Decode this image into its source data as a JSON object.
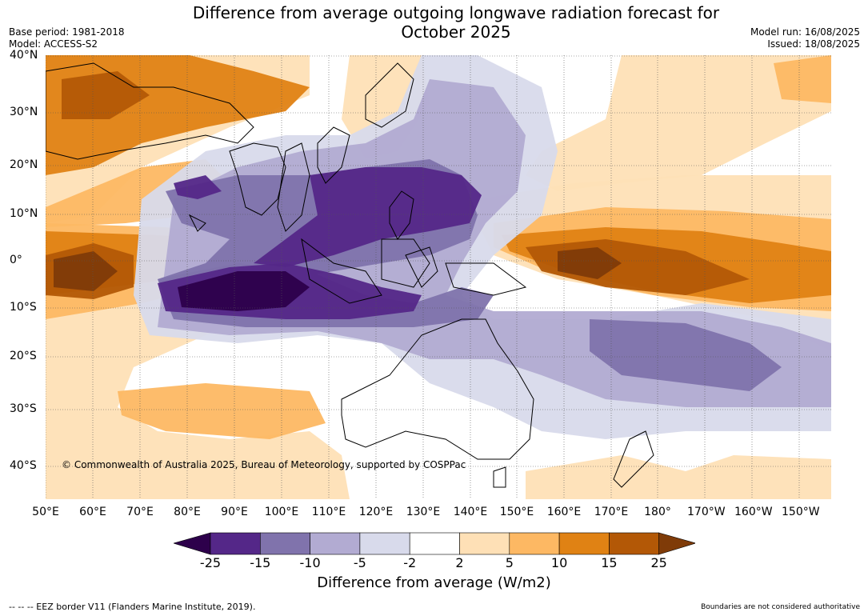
{
  "title": {
    "line1": "Difference from average outgoing longwave radiation forecast for",
    "line2": "October 2025"
  },
  "meta_left": {
    "base_period": "Base period: 1981-2018",
    "model": "Model: ACCESS-S2"
  },
  "meta_right": {
    "model_run": "Model run: 16/08/2025",
    "issued": "Issued: 18/08/2025"
  },
  "map": {
    "lat_labels": [
      "40°N",
      "30°N",
      "20°N",
      "10°N",
      "0°",
      "10°S",
      "20°S",
      "30°S",
      "40°S"
    ],
    "lon_labels": [
      "50°E",
      "60°E",
      "70°E",
      "80°E",
      "90°E",
      "100°E",
      "110°E",
      "120°E",
      "130°E",
      "140°E",
      "150°E",
      "160°E",
      "170°E",
      "180°",
      "170°W",
      "160°W",
      "150°W"
    ],
    "copyright": "© Commonwealth of Australia 2025, Bureau of Meteorology, supported by COSPPac"
  },
  "legend": {
    "ticks": [
      "-25",
      "-15",
      "-10",
      "-5",
      "-2",
      "2",
      "5",
      "10",
      "15",
      "25"
    ],
    "label": "Difference from average (W/m2)",
    "colors": {
      "below_min": "#2d004b",
      "c1": "#542788",
      "c2": "#8073ac",
      "c3": "#b2abd2",
      "c4": "#d8daeb",
      "c5": "#ffffff",
      "c6": "#fee0b6",
      "c7": "#fdb863",
      "c8": "#e08214",
      "c9": "#b35806",
      "above_max": "#7f3b08"
    }
  },
  "footer": {
    "eez": "--  --  -- EEZ border V11 (Flanders Marine Institute, 2019).",
    "note": "Boundaries are not considered authoritative"
  }
}
